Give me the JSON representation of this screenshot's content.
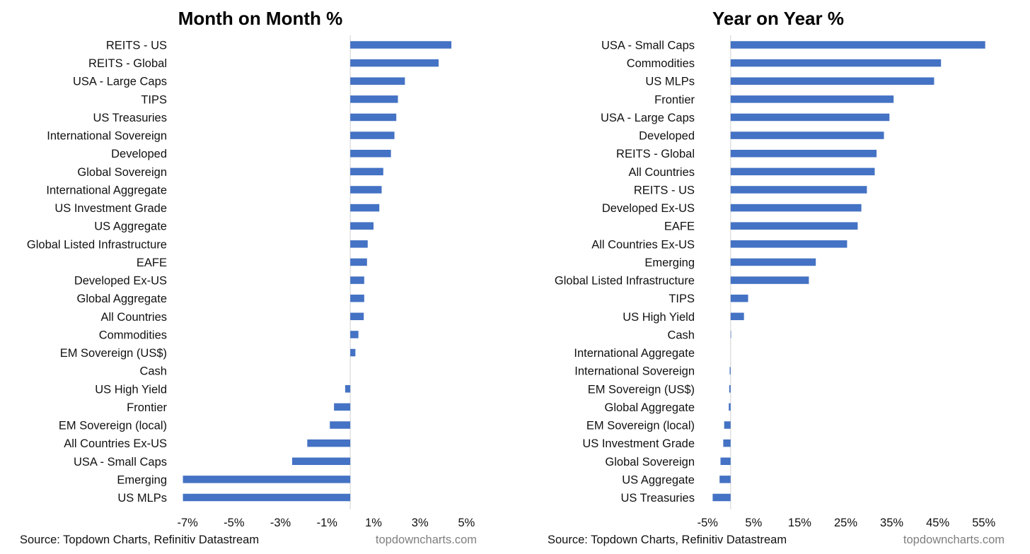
{
  "bar_color": "#4472C4",
  "axis_color": "#D9D9D9",
  "chart_data": [
    {
      "type": "bar",
      "orientation": "horizontal",
      "title": "Month on Month %",
      "categories": [
        "REITS - US",
        "REITS - Global",
        "USA - Large Caps",
        "TIPS",
        "US Treasuries",
        "International Sovereign",
        "Developed",
        "Global Sovereign",
        "International Aggregate",
        "US Investment Grade",
        "US Aggregate",
        "Global Listed Infrastructure",
        "EAFE",
        "Developed Ex-US",
        "Global Aggregate",
        "All Countries",
        "Commodities",
        "EM Sovereign (US$)",
        "Cash",
        "US High Yield",
        "Frontier",
        "EM Sovereign (local)",
        "All Countries Ex-US",
        "USA - Small Caps",
        "Emerging",
        "US MLPs"
      ],
      "values": [
        4.35,
        3.8,
        2.35,
        2.05,
        1.98,
        1.9,
        1.75,
        1.42,
        1.35,
        1.25,
        1.0,
        0.75,
        0.72,
        0.6,
        0.6,
        0.58,
        0.35,
        0.22,
        0.0,
        -0.22,
        -0.7,
        -0.88,
        -1.85,
        -2.5,
        -7.2,
        -7.2
      ],
      "xlim": [
        -7.4,
        5.2
      ],
      "xticks": [
        -7,
        -5,
        -3,
        -1,
        1,
        3,
        5
      ],
      "xtick_labels": [
        "-7%",
        "-5%",
        "-3%",
        "-1%",
        "1%",
        "3%",
        "5%"
      ],
      "source": "Source: Topdown Charts, Refinitiv Datastream",
      "brand": "topdowncharts.com"
    },
    {
      "type": "bar",
      "orientation": "horizontal",
      "title": "Year on Year %",
      "categories": [
        "USA - Small Caps",
        "Commodities",
        "US MLPs",
        "Frontier",
        "USA - Large Caps",
        "Developed",
        "REITS - Global",
        "All Countries",
        "REITS - US",
        "Developed Ex-US",
        "EAFE",
        "All Countries Ex-US",
        "Emerging",
        "Global Listed Infrastructure",
        "TIPS",
        "US High Yield",
        "Cash",
        "International Aggregate",
        "International Sovereign",
        "EM Sovereign (US$)",
        "Global Aggregate",
        "EM Sovereign (local)",
        "US Investment Grade",
        "Global Sovereign",
        "US Aggregate",
        "US Treasuries"
      ],
      "values": [
        55.3,
        45.7,
        44.2,
        35.4,
        34.5,
        33.3,
        31.7,
        31.3,
        29.6,
        28.4,
        27.6,
        25.3,
        18.5,
        17.0,
        3.8,
        2.9,
        0.1,
        0.0,
        -0.2,
        -0.3,
        -0.4,
        -1.4,
        -1.6,
        -2.2,
        -2.4,
        -3.9
      ],
      "xlim": [
        -5.5,
        57.5
      ],
      "xticks": [
        -5,
        5,
        15,
        25,
        35,
        45,
        55
      ],
      "xtick_labels": [
        "-5%",
        "5%",
        "15%",
        "25%",
        "35%",
        "45%",
        "55%"
      ],
      "source": "Source: Topdown Charts, Refinitiv Datastream",
      "brand": "topdowncharts.com"
    }
  ]
}
